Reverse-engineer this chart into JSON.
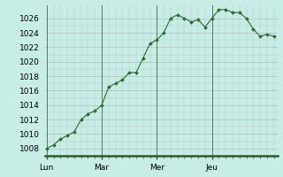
{
  "x_values": [
    0,
    1,
    2,
    3,
    4,
    5,
    6,
    7,
    8,
    9,
    10,
    11,
    12,
    13,
    14,
    15,
    16,
    17,
    18,
    19,
    20,
    21,
    22,
    23,
    24,
    25,
    26,
    27,
    28,
    29,
    30,
    31,
    32,
    33
  ],
  "y_values": [
    1008,
    1008.5,
    1009.3,
    1009.8,
    1010.3,
    1012.0,
    1012.8,
    1013.2,
    1014.0,
    1016.5,
    1017.0,
    1017.5,
    1018.5,
    1018.5,
    1020.5,
    1022.5,
    1023.0,
    1024.0,
    1026.0,
    1026.5,
    1026.0,
    1025.5,
    1025.8,
    1024.8,
    1026.0,
    1027.2,
    1027.2,
    1026.8,
    1026.8,
    1026.0,
    1024.5,
    1023.5,
    1023.8,
    1023.5
  ],
  "xtick_positions": [
    0,
    8,
    16,
    24
  ],
  "xtick_labels": [
    "Lun",
    "Mar",
    "Mer",
    "Jeu"
  ],
  "ytick_min": 1008,
  "ytick_max": 1026,
  "ytick_step": 2,
  "ylim_min": 1007.0,
  "ylim_max": 1027.8,
  "xlim_min": -0.2,
  "xlim_max": 33.5,
  "line_color": "#2d6a2d",
  "marker_color": "#2d6a2d",
  "bg_color": "#c8ece6",
  "grid_color": "#b0b0b0",
  "tick_label_fontsize": 6.5,
  "fig_width": 3.2,
  "fig_height": 2.0,
  "dpi": 100,
  "vline_positions": [
    0,
    8,
    16,
    24
  ],
  "bottom_line_color": "#2d5a2d"
}
